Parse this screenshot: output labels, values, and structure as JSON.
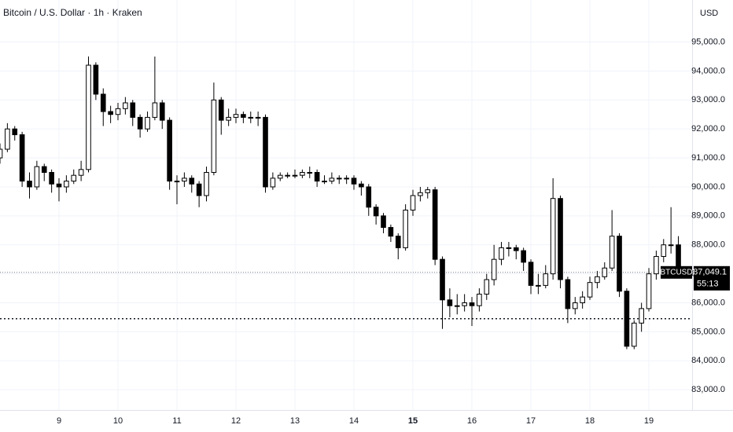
{
  "chart_data": {
    "type": "candlestick",
    "title": "Bitcoin / U.S. Dollar · 1h · Kraken",
    "currency": "USD",
    "symbol": "BTCUSD",
    "countdown": "55:13",
    "last_price": {
      "value": 87049.1,
      "label": "87,049.1"
    },
    "level_line": 85450,
    "up_color": "#ffffff",
    "down_color": "#000000",
    "grid": true,
    "xlim": [
      8,
      19.733
    ],
    "ylim": [
      82300,
      96450
    ],
    "xticks": [
      9,
      10,
      11,
      12,
      13,
      14,
      15,
      16,
      17,
      18,
      19
    ],
    "xticks_bold": [
      15
    ],
    "yticks": [
      {
        "value": 83000,
        "label": "83,000.0"
      },
      {
        "value": 84000,
        "label": "84,000.0"
      },
      {
        "value": 85000,
        "label": "85,000.0"
      },
      {
        "value": 86000,
        "label": "86,000.0"
      },
      {
        "value": 87000,
        "label": "87,000.0"
      },
      {
        "value": 88000,
        "label": "88,000.0"
      },
      {
        "value": 89000,
        "label": "89,000.0"
      },
      {
        "value": 90000,
        "label": "90,000.0"
      },
      {
        "value": 91000,
        "label": "91,000.0"
      },
      {
        "value": 92000,
        "label": "92,000.0"
      },
      {
        "value": 93000,
        "label": "93,000.0"
      },
      {
        "value": 94000,
        "label": "94,000.0"
      },
      {
        "value": 95000,
        "label": "95,000.0"
      }
    ],
    "x": [
      8,
      8.125,
      8.25,
      8.375,
      8.5,
      8.625,
      8.75,
      8.875,
      9,
      9.125,
      9.25,
      9.375,
      9.5,
      9.625,
      9.75,
      9.875,
      10,
      10.125,
      10.25,
      10.375,
      10.5,
      10.625,
      10.75,
      10.875,
      11,
      11.125,
      11.25,
      11.375,
      11.5,
      11.625,
      11.75,
      11.875,
      12,
      12.125,
      12.25,
      12.375,
      12.5,
      12.625,
      12.75,
      12.875,
      13,
      13.125,
      13.25,
      13.375,
      13.5,
      13.625,
      13.75,
      13.875,
      14,
      14.125,
      14.25,
      14.375,
      14.5,
      14.625,
      14.75,
      14.875,
      15,
      15.125,
      15.25,
      15.375,
      15.5,
      15.625,
      15.75,
      15.875,
      16,
      16.125,
      16.25,
      16.375,
      16.5,
      16.625,
      16.75,
      16.875,
      17,
      17.125,
      17.25,
      17.375,
      17.5,
      17.625,
      17.75,
      17.875,
      18,
      18.125,
      18.25,
      18.375,
      18.5,
      18.625,
      18.75,
      18.875,
      19,
      19.125,
      19.25,
      19.375,
      19.5
    ],
    "open": [
      91000,
      91300,
      92000,
      91800,
      90200,
      90000,
      90700,
      90500,
      90100,
      90000,
      90200,
      90400,
      90600,
      94200,
      93200,
      92600,
      92500,
      92700,
      92900,
      92400,
      92000,
      92400,
      92900,
      92300,
      90200,
      90200,
      90300,
      90100,
      89700,
      90500,
      93000,
      92300,
      92400,
      92500,
      92400,
      92400,
      92400,
      90000,
      90300,
      90400,
      90400,
      90400,
      90500,
      90500,
      90200,
      90200,
      90300,
      90300,
      90300,
      90100,
      90000,
      89300,
      89000,
      88600,
      88300,
      87900,
      89200,
      89700,
      89800,
      89900,
      87500,
      86100,
      85900,
      85900,
      86000,
      85900,
      86300,
      86800,
      87500,
      87900,
      87900,
      87800,
      87400,
      86600,
      86600,
      87000,
      89600,
      86800,
      85800,
      86000,
      86200,
      86700,
      86900,
      87200,
      88300,
      86400,
      84500,
      85300,
      85800,
      87000,
      87600,
      88000,
      88000
    ],
    "high": [
      91500,
      92200,
      92100,
      91900,
      90500,
      90900,
      90800,
      90600,
      90300,
      90400,
      90600,
      90900,
      94500,
      94300,
      93400,
      92800,
      92900,
      93100,
      93000,
      92500,
      92600,
      94500,
      93000,
      92400,
      90400,
      90500,
      90400,
      90200,
      90700,
      93600,
      93100,
      92700,
      92700,
      92600,
      92600,
      92600,
      92500,
      90500,
      90500,
      90500,
      90600,
      90600,
      90700,
      90600,
      90400,
      90500,
      90400,
      90400,
      90400,
      90200,
      90100,
      89400,
      89100,
      88700,
      88400,
      89400,
      89900,
      90000,
      90000,
      90000,
      87600,
      86500,
      86300,
      86300,
      86200,
      86500,
      87000,
      88000,
      88100,
      88100,
      88000,
      87900,
      87500,
      87000,
      87300,
      90300,
      89700,
      86900,
      86200,
      86400,
      86900,
      87100,
      87400,
      89200,
      88400,
      86500,
      85400,
      86000,
      87200,
      87800,
      88200,
      89300,
      88300
    ],
    "low": [
      90800,
      91200,
      91600,
      90000,
      89600,
      89900,
      90200,
      89800,
      89500,
      89800,
      90100,
      90200,
      90500,
      93000,
      92100,
      92200,
      92300,
      92500,
      92100,
      91700,
      91900,
      92300,
      92000,
      89900,
      89400,
      90000,
      89800,
      89300,
      89500,
      90400,
      91800,
      92100,
      92200,
      92200,
      92200,
      92100,
      89800,
      89900,
      90200,
      90300,
      90300,
      90300,
      90300,
      90000,
      90100,
      90100,
      90100,
      90100,
      89900,
      89700,
      89000,
      88700,
      88400,
      88100,
      87500,
      87800,
      89000,
      89500,
      89600,
      87300,
      85100,
      85500,
      85600,
      85700,
      85200,
      85700,
      86100,
      86600,
      87300,
      87600,
      87500,
      87100,
      86300,
      86300,
      86500,
      86800,
      86500,
      85300,
      85600,
      85800,
      86100,
      86500,
      86800,
      87100,
      86200,
      84400,
      84400,
      85000,
      85700,
      86800,
      87400,
      87700,
      86900
    ],
    "close": [
      91300,
      92000,
      91800,
      90200,
      90000,
      90700,
      90500,
      90100,
      90000,
      90200,
      90400,
      90600,
      94200,
      93200,
      92600,
      92500,
      92700,
      92900,
      92400,
      92000,
      92400,
      92900,
      92300,
      90200,
      90200,
      90300,
      90100,
      89700,
      90500,
      93000,
      92300,
      92400,
      92500,
      92400,
      92400,
      92400,
      90000,
      90300,
      90400,
      90400,
      90400,
      90500,
      90500,
      90200,
      90200,
      90300,
      90300,
      90300,
      90100,
      90000,
      89300,
      89000,
      88600,
      88300,
      87900,
      89200,
      89700,
      89800,
      89900,
      87500,
      86100,
      85900,
      85900,
      86000,
      85900,
      86300,
      86800,
      87500,
      87900,
      87900,
      87800,
      87400,
      86600,
      86600,
      87000,
      89600,
      86800,
      85800,
      86000,
      86200,
      86700,
      86900,
      87200,
      88300,
      86400,
      84500,
      85300,
      85800,
      87000,
      87600,
      88000,
      88000,
      87049.1
    ]
  }
}
